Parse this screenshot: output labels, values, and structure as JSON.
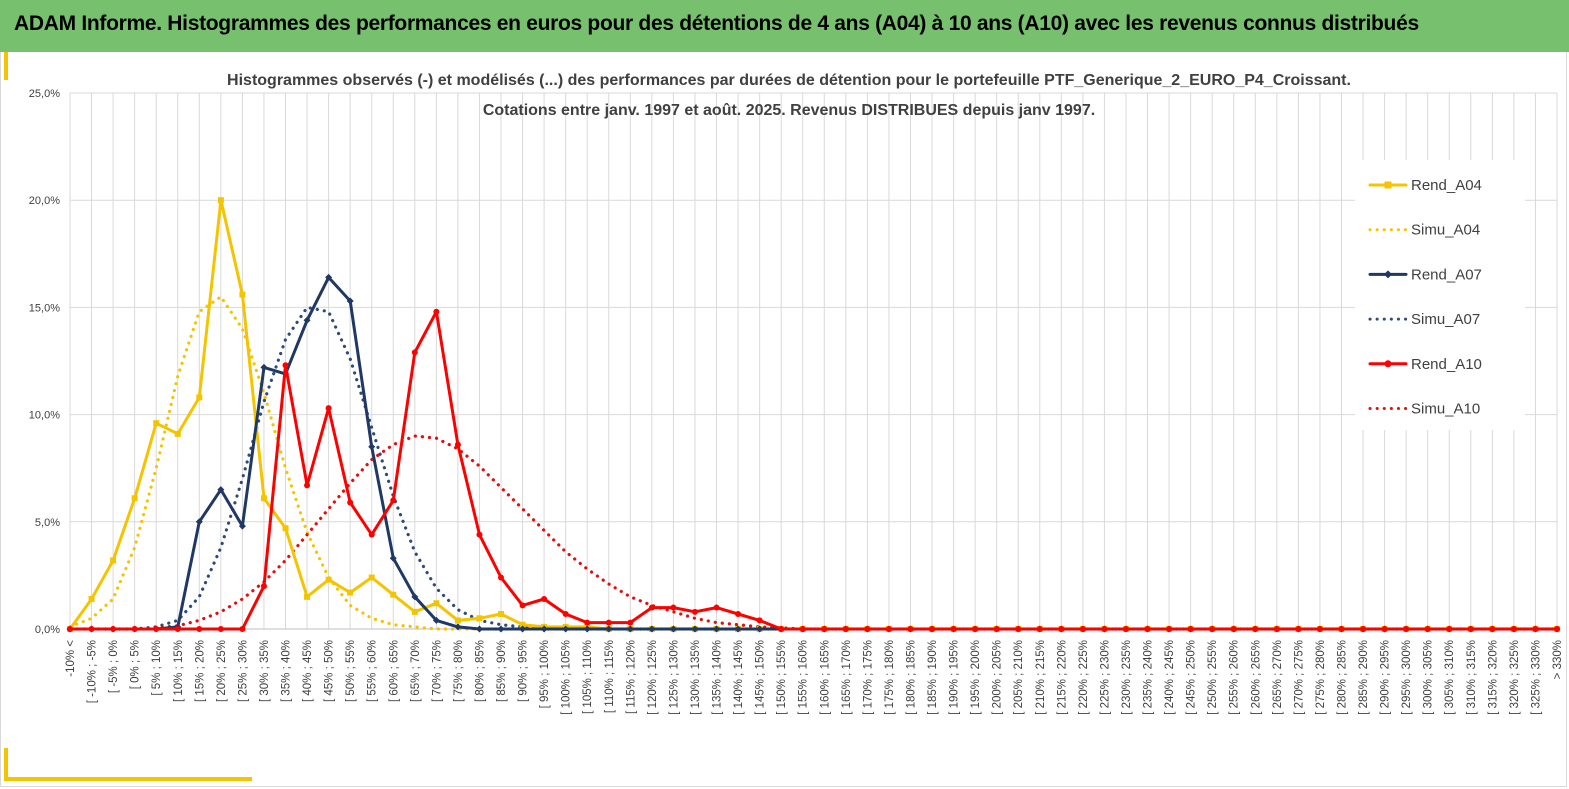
{
  "banner": {
    "title": "ADAM Informe. Histogrammes des performances en euros pour des détentions de 4 ans (A04) à 10 ans (A10) avec les revenus connus distribués",
    "color": "#77c06e"
  },
  "chart_data": {
    "type": "line",
    "title_line1": "Histogrammes observés (-) et modélisés (...) des performances par durées de détention pour  le portefeuille PTF_Generique_2_EURO_P4_Croissant.",
    "title_line2": "Cotations  entre janv. 1997 et août. 2025. Revenus DISTRIBUES depuis janv 1997.",
    "ylim": [
      0,
      25
    ],
    "yticks": [
      "0,0%",
      "5,0%",
      "10,0%",
      "15,0%",
      "20,0%",
      "25,0%"
    ],
    "grid": true,
    "legend_position": "right",
    "categories": [
      "-10% <",
      "[ -10% ; -5%",
      "[ -5% ; 0%",
      "[ 0% ; 5%",
      "[ 5% ; 10%",
      "[ 10% ; 15%",
      "[ 15% ; 20%",
      "[ 20% ; 25%",
      "[ 25% ; 30%",
      "[ 30% ; 35%",
      "[ 35% ; 40%",
      "[ 40% ; 45%",
      "[ 45% ; 50%",
      "[ 50% ; 55%",
      "[ 55% ; 60%",
      "[ 60% ; 65%",
      "[ 65% ; 70%",
      "[ 70% ; 75%",
      "[ 75% ; 80%",
      "[ 80% ; 85%",
      "[ 85% ; 90%",
      "[ 90% ; 95%",
      "[ 95% ; 100%",
      "[ 100% ; 105%",
      "[ 105% ; 110%",
      "[ 110% ; 115%",
      "[ 115% ; 120%",
      "[ 120% ; 125%",
      "[ 125% ; 130%",
      "[ 130% ; 135%",
      "[ 135% ; 140%",
      "[ 140% ; 145%",
      "[ 145% ; 150%",
      "[ 150% ; 155%",
      "[ 155% ; 160%",
      "[ 160% ; 165%",
      "[ 165% ; 170%",
      "[ 170% ; 175%",
      "[ 175% ; 180%",
      "[ 180% ; 185%",
      "[ 185% ; 190%",
      "[ 190% ; 195%",
      "[ 195% ; 200%",
      "[ 200% ; 205%",
      "[ 205% ; 210%",
      "[ 210% ; 215%",
      "[ 215% ; 220%",
      "[ 220% ; 225%",
      "[ 225% ; 230%",
      "[ 230% ; 235%",
      "[ 235% ; 240%",
      "[ 240% ; 245%",
      "[ 245% ; 250%",
      "[ 250% ; 255%",
      "[ 255% ; 260%",
      "[ 260% ; 265%",
      "[ 265% ; 270%",
      "[ 270% ; 275%",
      "[ 275% ; 280%",
      "[ 280% ; 285%",
      "[ 285% ; 290%",
      "[ 290% ; 295%",
      "[ 295% ; 300%",
      "[ 300% ; 305%",
      "[ 305% ; 310%",
      "[ 310% ; 315%",
      "[ 315% ; 320%",
      "[ 320% ; 325%",
      "[ 325% ; 330%",
      "> 330%"
    ],
    "series": [
      {
        "name": "Rend_A04",
        "color": "#f5c400",
        "style": "solid",
        "marker": "square",
        "values": [
          0,
          1.4,
          3.2,
          6.1,
          9.6,
          9.1,
          10.8,
          20.0,
          15.6,
          6.1,
          4.7,
          1.5,
          2.3,
          1.7,
          2.4,
          1.6,
          0.8,
          1.2,
          0.4,
          0.5,
          0.7,
          0.2,
          0.1,
          0.1,
          0.1,
          0,
          0,
          0,
          0,
          0,
          0,
          0,
          0,
          0,
          0,
          0,
          0,
          0,
          0,
          0,
          0,
          0,
          0,
          0,
          0,
          0,
          0,
          0,
          0,
          0,
          0,
          0,
          0,
          0,
          0,
          0,
          0,
          0,
          0,
          0,
          0,
          0,
          0,
          0,
          0,
          0,
          0,
          0,
          0,
          0
        ]
      },
      {
        "name": "Simu_A04",
        "color": "#f5c400",
        "style": "dotted",
        "values": [
          0.1,
          0.5,
          1.4,
          3.8,
          7.5,
          11.8,
          14.8,
          15.5,
          14.0,
          11.0,
          7.5,
          4.5,
          2.4,
          1.1,
          0.5,
          0.2,
          0.1,
          0,
          0,
          0,
          0,
          0,
          0,
          0,
          0,
          0,
          0,
          0,
          0,
          0,
          0,
          0,
          0,
          0,
          0,
          0,
          0,
          0,
          0,
          0,
          0,
          0,
          0,
          0,
          0,
          0,
          0,
          0,
          0,
          0,
          0,
          0,
          0,
          0,
          0,
          0,
          0,
          0,
          0,
          0,
          0,
          0,
          0,
          0,
          0,
          0,
          0,
          0,
          0,
          0
        ]
      },
      {
        "name": "Rend_A07",
        "color": "#1f3864",
        "style": "solid",
        "marker": "diamond",
        "values": [
          0,
          0,
          0,
          0,
          0,
          0.1,
          5.0,
          6.5,
          4.8,
          12.2,
          11.9,
          14.4,
          16.4,
          15.3,
          8.5,
          3.3,
          1.5,
          0.4,
          0.1,
          0,
          0,
          0,
          0,
          0,
          0,
          0,
          0,
          0,
          0,
          0,
          0,
          0,
          0,
          0,
          0,
          0,
          0,
          0,
          0,
          0,
          0,
          0,
          0,
          0,
          0,
          0,
          0,
          0,
          0,
          0,
          0,
          0,
          0,
          0,
          0,
          0,
          0,
          0,
          0,
          0,
          0,
          0,
          0,
          0,
          0,
          0,
          0,
          0,
          0,
          0
        ]
      },
      {
        "name": "Simu_A07",
        "color": "#2e4a7a",
        "style": "dotted",
        "values": [
          0,
          0,
          0,
          0,
          0.1,
          0.4,
          1.5,
          3.8,
          7.0,
          10.6,
          13.5,
          15.0,
          14.8,
          12.6,
          9.4,
          6.2,
          3.6,
          1.9,
          0.9,
          0.4,
          0.2,
          0.1,
          0,
          0,
          0,
          0,
          0,
          0,
          0,
          0,
          0,
          0,
          0,
          0,
          0,
          0,
          0,
          0,
          0,
          0,
          0,
          0,
          0,
          0,
          0,
          0,
          0,
          0,
          0,
          0,
          0,
          0,
          0,
          0,
          0,
          0,
          0,
          0,
          0,
          0,
          0,
          0,
          0,
          0,
          0,
          0,
          0,
          0,
          0,
          0
        ]
      },
      {
        "name": "Rend_A10",
        "color": "#ff0000",
        "style": "solid",
        "marker": "circle",
        "values": [
          0,
          0,
          0,
          0,
          0,
          0,
          0,
          0,
          0,
          2.0,
          12.3,
          6.7,
          10.3,
          5.9,
          4.4,
          6.0,
          12.9,
          14.8,
          8.6,
          4.4,
          2.4,
          1.1,
          1.4,
          0.7,
          0.3,
          0.3,
          0.3,
          1.0,
          1.0,
          0.8,
          1.0,
          0.7,
          0.4,
          0,
          0,
          0,
          0,
          0,
          0,
          0,
          0,
          0,
          0,
          0,
          0,
          0,
          0,
          0,
          0,
          0,
          0,
          0,
          0,
          0,
          0,
          0,
          0,
          0,
          0,
          0,
          0,
          0,
          0,
          0,
          0,
          0,
          0,
          0,
          0,
          0
        ]
      },
      {
        "name": "Simu_A10",
        "color": "#e01010",
        "style": "dotted",
        "values": [
          0,
          0,
          0,
          0,
          0.05,
          0.15,
          0.4,
          0.8,
          1.4,
          2.2,
          3.2,
          4.4,
          5.6,
          6.8,
          7.9,
          8.6,
          9.0,
          8.9,
          8.4,
          7.6,
          6.6,
          5.6,
          4.6,
          3.6,
          2.8,
          2.1,
          1.5,
          1.1,
          0.8,
          0.5,
          0.3,
          0.2,
          0.1,
          0.05,
          0,
          0,
          0,
          0,
          0,
          0,
          0,
          0,
          0,
          0,
          0,
          0,
          0,
          0,
          0,
          0,
          0,
          0,
          0,
          0,
          0,
          0,
          0,
          0,
          0,
          0,
          0,
          0,
          0,
          0,
          0,
          0,
          0,
          0,
          0,
          0
        ]
      }
    ]
  }
}
